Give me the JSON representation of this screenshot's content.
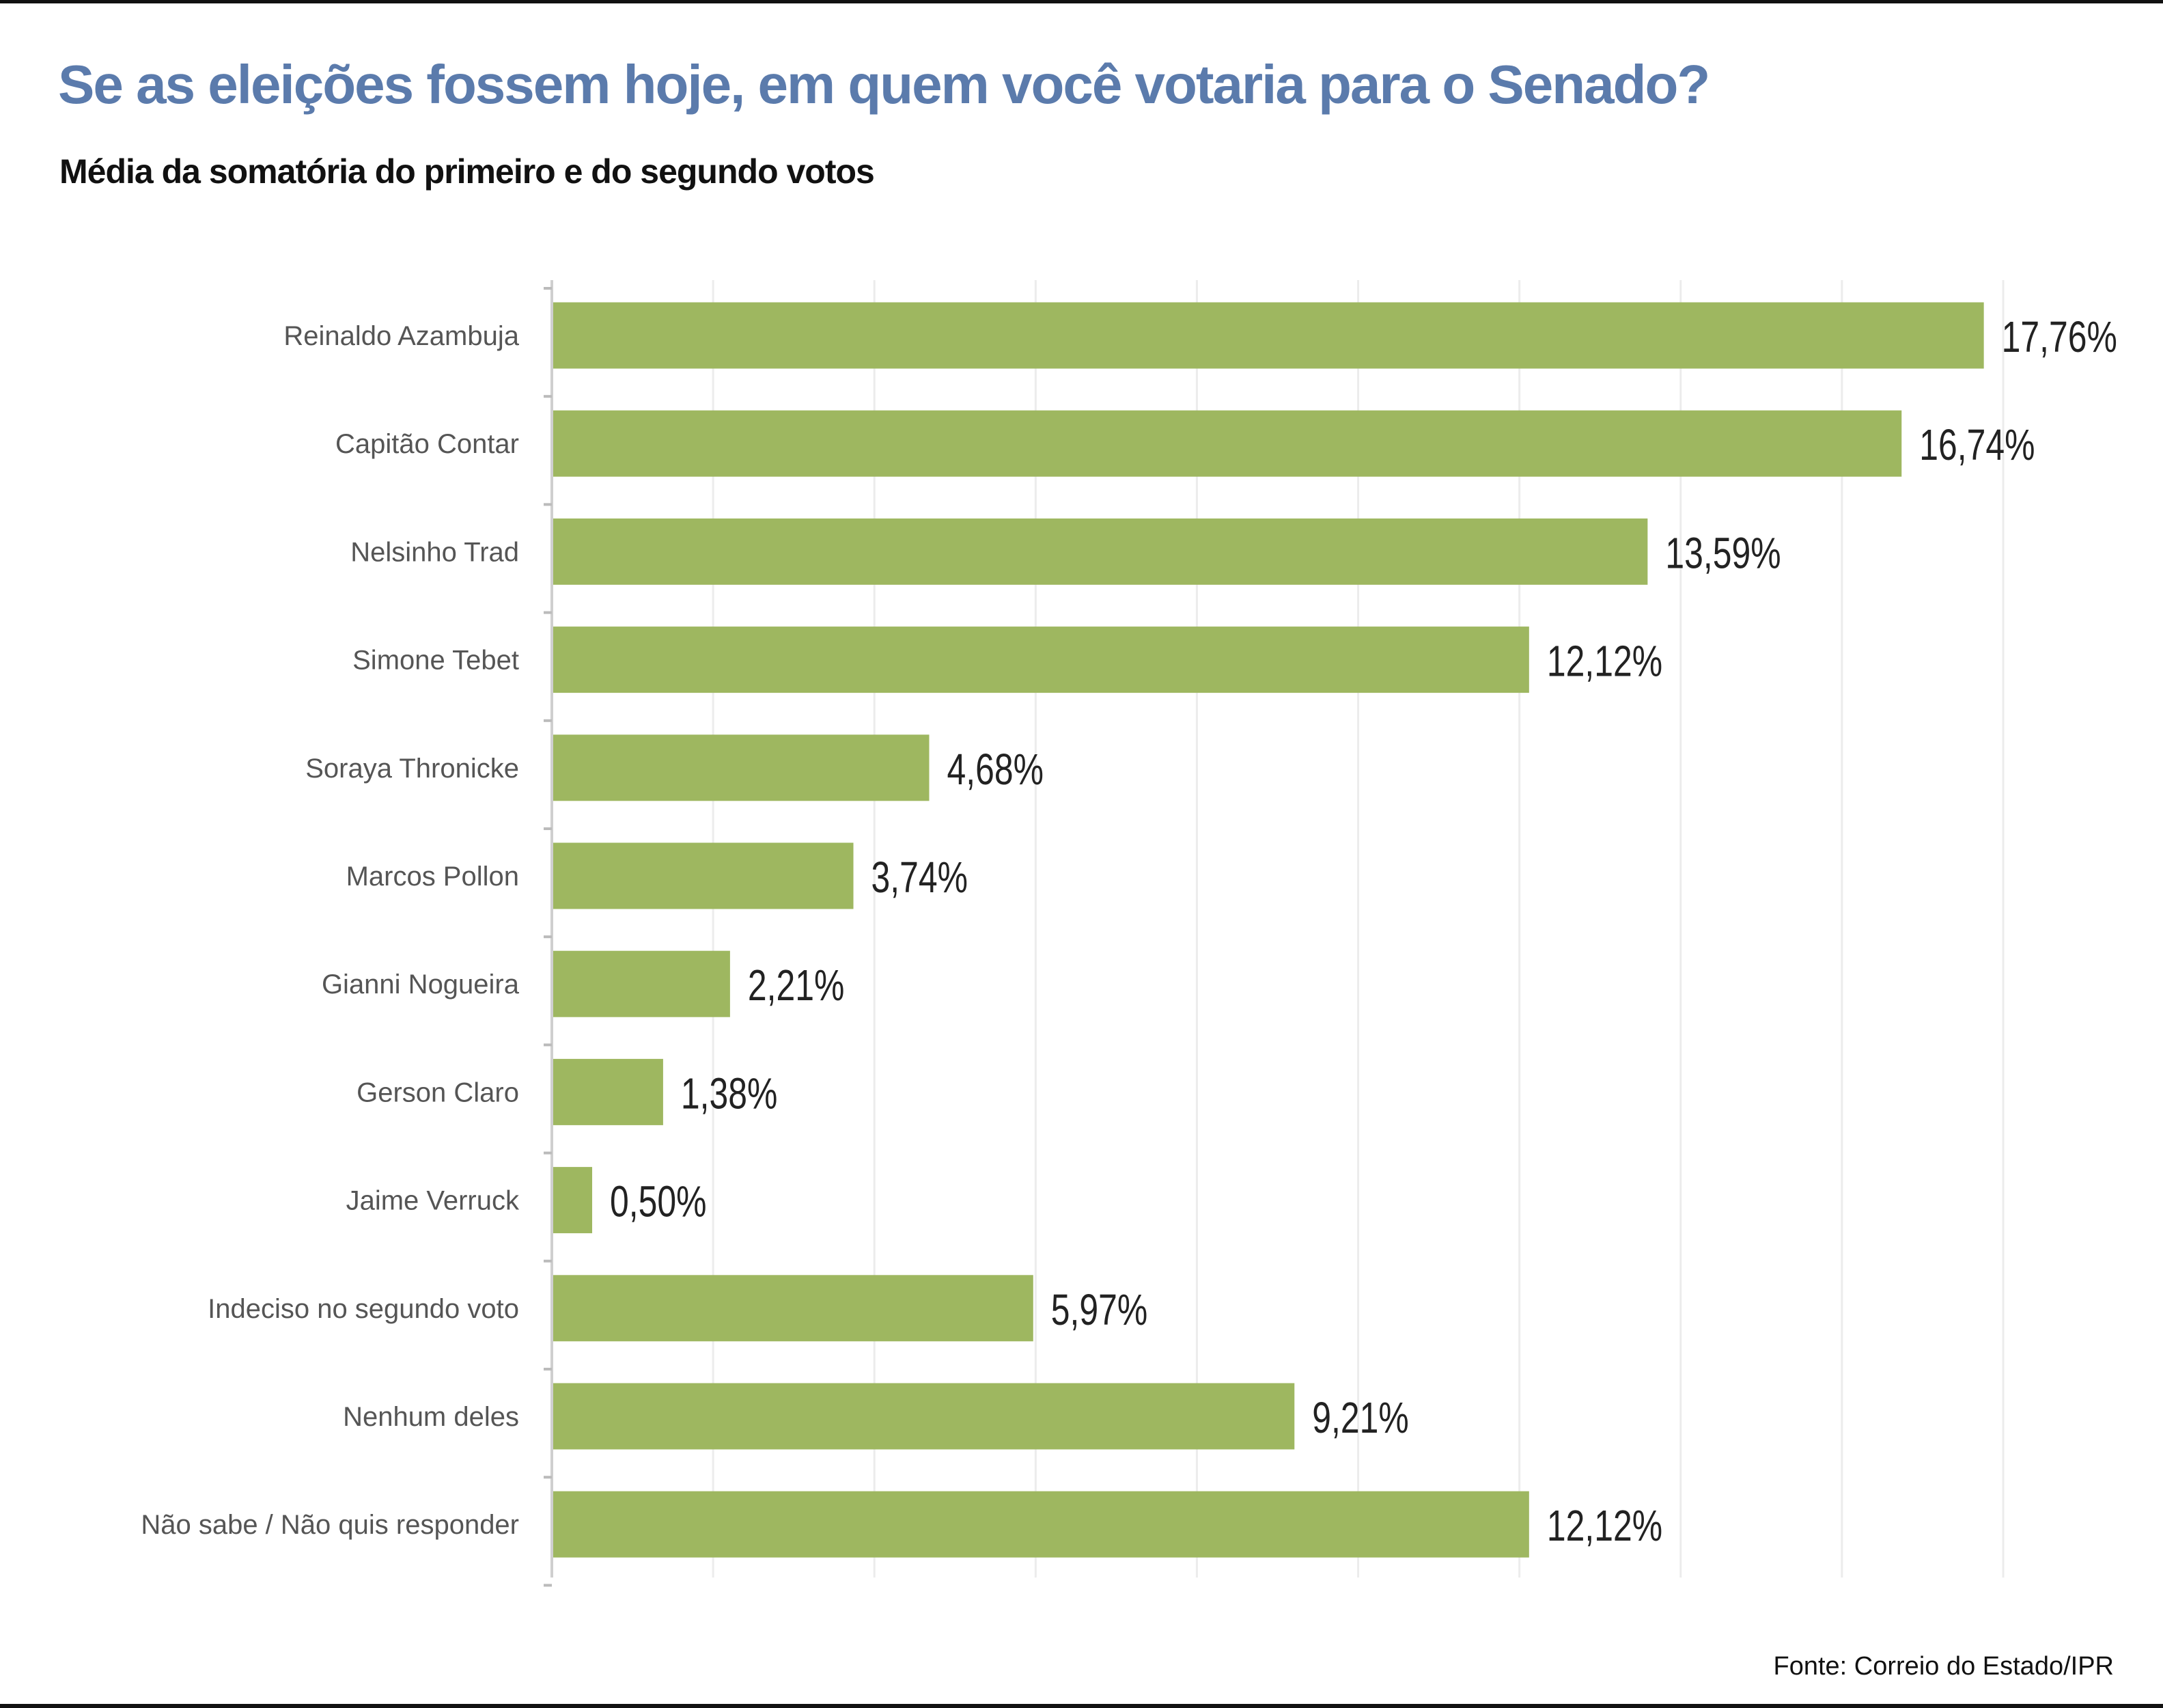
{
  "title": "Se as eleições fossem hoje, em quem você votaria para o Senado?",
  "subtitle": "Média da somatória do primeiro e do segundo votos",
  "source": "Fonte: Correio do Estado/IPR",
  "chart_data": {
    "type": "bar",
    "orientation": "horizontal",
    "categories": [
      "Reinaldo Azambuja",
      "Capitão Contar",
      "Nelsinho Trad",
      "Simone Tebet",
      "Soraya Thronicke",
      "Marcos Pollon",
      "Gianni Nogueira",
      "Gerson Claro",
      "Jaime Verruck",
      "Indeciso no segundo voto",
      "Nenhum deles",
      "Não sabe / Não quis responder"
    ],
    "values": [
      17.76,
      16.74,
      13.59,
      12.12,
      4.68,
      3.74,
      2.21,
      1.38,
      0.5,
      5.97,
      9.21,
      12.12
    ],
    "data_labels": [
      "17,76%",
      "16,74%",
      "13,59%",
      "12,12%",
      "4,68%",
      "3,74%",
      "2,21%",
      "1,38%",
      "0,50%",
      "5,97%",
      "9,21%",
      "12,12%"
    ],
    "xlim": [
      0,
      18
    ],
    "grid": true,
    "grid_step": 2,
    "bar_color": "#9eb760",
    "title_color": "#5b7bac"
  }
}
